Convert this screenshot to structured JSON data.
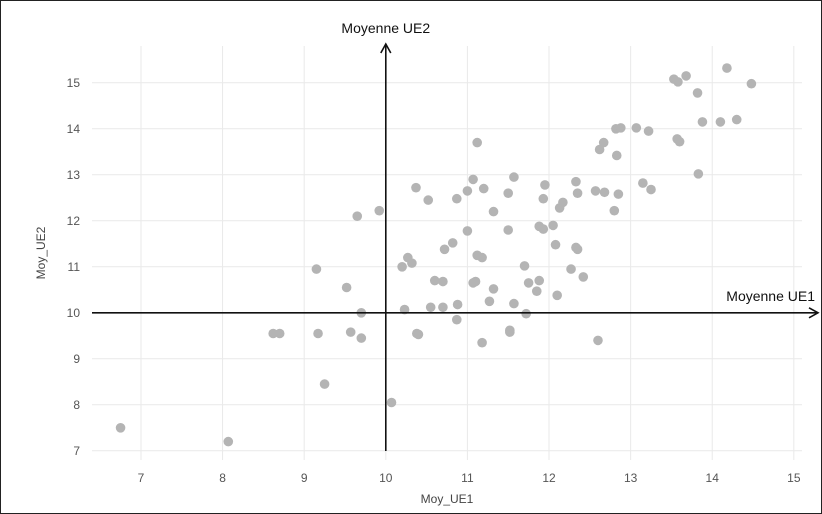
{
  "chart_data": {
    "type": "scatter",
    "xlabel": "Moy_UE1",
    "ylabel": "Moy_UE2",
    "xlim": [
      6.4,
      15.1
    ],
    "ylim": [
      6.8,
      15.8
    ],
    "xticks": [
      7,
      8,
      9,
      10,
      11,
      12,
      13,
      14,
      15
    ],
    "yticks": [
      7,
      8,
      9,
      10,
      11,
      12,
      13,
      14,
      15
    ],
    "grid": true,
    "point_color": "#b4b4b4",
    "annotations": {
      "vertical_line_label": "Moyenne UE2",
      "horizontal_line_label": "Moyenne UE1",
      "vertical_line_x": 10,
      "horizontal_line_y": 10
    },
    "points": [
      {
        "x": 6.75,
        "y": 7.5
      },
      {
        "x": 8.07,
        "y": 7.2
      },
      {
        "x": 8.62,
        "y": 9.55
      },
      {
        "x": 8.7,
        "y": 9.55
      },
      {
        "x": 9.15,
        "y": 10.95
      },
      {
        "x": 9.17,
        "y": 9.55
      },
      {
        "x": 9.25,
        "y": 8.45
      },
      {
        "x": 9.52,
        "y": 10.55
      },
      {
        "x": 9.57,
        "y": 9.58
      },
      {
        "x": 9.65,
        "y": 12.1
      },
      {
        "x": 9.7,
        "y": 10.0
      },
      {
        "x": 9.7,
        "y": 9.45
      },
      {
        "x": 9.92,
        "y": 12.22
      },
      {
        "x": 10.07,
        "y": 8.05
      },
      {
        "x": 10.2,
        "y": 11.0
      },
      {
        "x": 10.23,
        "y": 10.07
      },
      {
        "x": 10.27,
        "y": 11.2
      },
      {
        "x": 10.32,
        "y": 11.08
      },
      {
        "x": 10.37,
        "y": 12.72
      },
      {
        "x": 10.4,
        "y": 9.53
      },
      {
        "x": 10.38,
        "y": 9.55
      },
      {
        "x": 10.52,
        "y": 12.45
      },
      {
        "x": 10.55,
        "y": 10.12
      },
      {
        "x": 10.6,
        "y": 10.7
      },
      {
        "x": 10.7,
        "y": 10.12
      },
      {
        "x": 10.7,
        "y": 10.68
      },
      {
        "x": 10.72,
        "y": 11.38
      },
      {
        "x": 10.82,
        "y": 11.52
      },
      {
        "x": 10.87,
        "y": 12.48
      },
      {
        "x": 10.87,
        "y": 9.85
      },
      {
        "x": 10.88,
        "y": 10.18
      },
      {
        "x": 11.0,
        "y": 11.78
      },
      {
        "x": 11.0,
        "y": 12.65
      },
      {
        "x": 11.07,
        "y": 12.9
      },
      {
        "x": 11.07,
        "y": 10.65
      },
      {
        "x": 11.1,
        "y": 10.68
      },
      {
        "x": 11.12,
        "y": 13.7
      },
      {
        "x": 11.12,
        "y": 11.25
      },
      {
        "x": 11.18,
        "y": 11.2
      },
      {
        "x": 11.18,
        "y": 9.35
      },
      {
        "x": 11.2,
        "y": 12.7
      },
      {
        "x": 11.27,
        "y": 10.25
      },
      {
        "x": 11.32,
        "y": 10.52
      },
      {
        "x": 11.32,
        "y": 12.2
      },
      {
        "x": 11.5,
        "y": 11.8
      },
      {
        "x": 11.5,
        "y": 12.6
      },
      {
        "x": 11.52,
        "y": 9.62
      },
      {
        "x": 11.52,
        "y": 9.58
      },
      {
        "x": 11.57,
        "y": 12.95
      },
      {
        "x": 11.57,
        "y": 10.2
      },
      {
        "x": 11.7,
        "y": 11.02
      },
      {
        "x": 11.72,
        "y": 9.98
      },
      {
        "x": 11.75,
        "y": 10.65
      },
      {
        "x": 11.85,
        "y": 10.47
      },
      {
        "x": 11.88,
        "y": 10.7
      },
      {
        "x": 11.88,
        "y": 11.88
      },
      {
        "x": 11.93,
        "y": 11.82
      },
      {
        "x": 11.93,
        "y": 12.48
      },
      {
        "x": 11.95,
        "y": 12.78
      },
      {
        "x": 12.05,
        "y": 11.9
      },
      {
        "x": 12.08,
        "y": 11.48
      },
      {
        "x": 12.1,
        "y": 10.38
      },
      {
        "x": 12.13,
        "y": 12.28
      },
      {
        "x": 12.17,
        "y": 12.4
      },
      {
        "x": 12.27,
        "y": 10.95
      },
      {
        "x": 12.33,
        "y": 11.42
      },
      {
        "x": 12.33,
        "y": 12.85
      },
      {
        "x": 12.35,
        "y": 11.38
      },
      {
        "x": 12.35,
        "y": 12.6
      },
      {
        "x": 12.42,
        "y": 10.78
      },
      {
        "x": 12.57,
        "y": 12.65
      },
      {
        "x": 12.6,
        "y": 9.4
      },
      {
        "x": 12.62,
        "y": 13.55
      },
      {
        "x": 12.67,
        "y": 13.7
      },
      {
        "x": 12.68,
        "y": 12.62
      },
      {
        "x": 12.8,
        "y": 12.22
      },
      {
        "x": 12.82,
        "y": 14.0
      },
      {
        "x": 12.83,
        "y": 13.42
      },
      {
        "x": 12.85,
        "y": 12.58
      },
      {
        "x": 12.88,
        "y": 14.02
      },
      {
        "x": 13.07,
        "y": 14.02
      },
      {
        "x": 13.15,
        "y": 12.82
      },
      {
        "x": 13.22,
        "y": 13.95
      },
      {
        "x": 13.25,
        "y": 12.68
      },
      {
        "x": 13.53,
        "y": 15.08
      },
      {
        "x": 13.58,
        "y": 15.02
      },
      {
        "x": 13.57,
        "y": 13.78
      },
      {
        "x": 13.6,
        "y": 13.72
      },
      {
        "x": 13.68,
        "y": 15.15
      },
      {
        "x": 13.82,
        "y": 14.78
      },
      {
        "x": 13.83,
        "y": 13.02
      },
      {
        "x": 13.88,
        "y": 14.15
      },
      {
        "x": 14.1,
        "y": 14.15
      },
      {
        "x": 14.18,
        "y": 15.32
      },
      {
        "x": 14.3,
        "y": 14.2
      },
      {
        "x": 14.48,
        "y": 14.98
      }
    ]
  }
}
